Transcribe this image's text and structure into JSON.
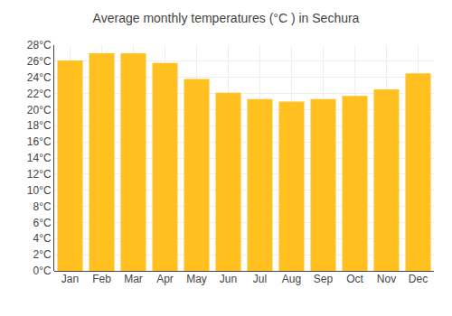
{
  "chart_data": {
    "type": "bar",
    "title": "Average monthly temperatures (°C ) in Sechura",
    "categories": [
      "Jan",
      "Feb",
      "Mar",
      "Apr",
      "May",
      "Jun",
      "Jul",
      "Aug",
      "Sep",
      "Oct",
      "Nov",
      "Dec"
    ],
    "values": [
      26.1,
      27.0,
      27.0,
      25.8,
      23.8,
      22.1,
      21.3,
      21.0,
      21.3,
      21.7,
      22.5,
      24.5
    ],
    "color": "#FFC020",
    "ylim": [
      0,
      28
    ],
    "yticks": [
      {
        "value": 0,
        "label": "0°C"
      },
      {
        "value": 2,
        "label": "2°C"
      },
      {
        "value": 4,
        "label": "4°C"
      },
      {
        "value": 6,
        "label": "6°C"
      },
      {
        "value": 8,
        "label": "8°C"
      },
      {
        "value": 10,
        "label": "10°C"
      },
      {
        "value": 12,
        "label": "12°C"
      },
      {
        "value": 14,
        "label": "14°C"
      },
      {
        "value": 16,
        "label": "16°C"
      },
      {
        "value": 18,
        "label": "18°C"
      },
      {
        "value": 20,
        "label": "20°C"
      },
      {
        "value": 22,
        "label": "22°C"
      },
      {
        "value": 24,
        "label": "24°C"
      },
      {
        "value": 26,
        "label": "26°C"
      },
      {
        "value": 28,
        "label": "28°C"
      }
    ],
    "grid": true
  }
}
